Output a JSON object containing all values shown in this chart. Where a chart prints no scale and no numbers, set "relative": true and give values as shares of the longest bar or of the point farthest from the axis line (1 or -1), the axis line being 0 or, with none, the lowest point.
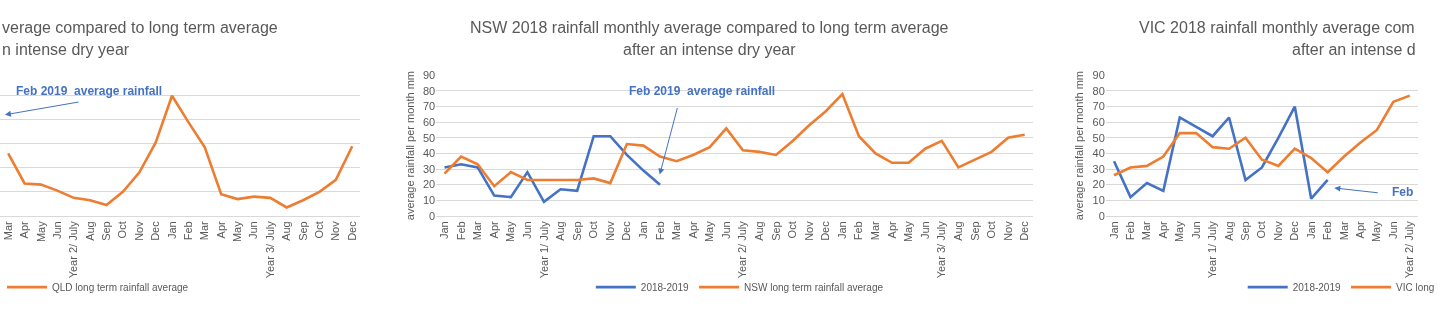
{
  "chart_data": [
    {
      "type": "line",
      "title": "verage compared to long term average n intense dry year",
      "relative": true,
      "categories": [
        "Mar",
        "Apr",
        "May",
        "Jun",
        "Year 2/ July",
        "Aug",
        "Sep",
        "Oct",
        "Nov",
        "Dec",
        "Jan",
        "Feb",
        "Mar",
        "Apr",
        "May",
        "Jun",
        "Year 3/ July",
        "Aug",
        "Sep",
        "Oct",
        "Nov",
        "Dec"
      ],
      "series": [
        {
          "name": "QLD long term rainfall average",
          "color": "#ed7d31",
          "values": [
            0.52,
            0.27,
            0.26,
            0.21,
            0.15,
            0.13,
            0.09,
            0.2,
            0.36,
            0.61,
            1,
            0.78,
            0.57,
            0.18,
            0.14,
            0.16,
            0.15,
            0.07,
            0.13,
            0.2,
            0.3,
            0.58
          ]
        }
      ],
      "annotations": [
        "Feb 2019  average rainfall"
      ],
      "grid": "y",
      "legend": "bottom",
      "marker": "none",
      "line_style": "solid",
      "tick_labels": "x"
    },
    {
      "type": "line",
      "title": "NSW 2018 rainfall monthly average compared to long term average after an intense dry year",
      "ylabel": "average rainfall per month mm",
      "categories": [
        "Jan",
        "Feb",
        "Mar",
        "Apr",
        "May",
        "Jun",
        "Year 1/ July",
        "Aug",
        "Sep",
        "Oct",
        "Nov",
        "Dec",
        "Jan",
        "Feb",
        "Mar",
        "Apr",
        "May",
        "Jun",
        "Year 2/ July",
        "Aug",
        "Sep",
        "Oct",
        "Nov",
        "Dec",
        "Jan",
        "Feb",
        "Mar",
        "Apr",
        "May",
        "Jun",
        "Year 3/ July",
        "Aug",
        "Sep",
        "Oct",
        "Nov",
        "Dec"
      ],
      "series": [
        {
          "name": "2018-2019",
          "color": "#4472c4",
          "values": [
            31,
            33,
            31,
            13,
            12,
            28,
            9,
            17,
            16,
            51,
            51,
            39,
            29,
            20,
            null,
            null,
            null,
            null,
            null,
            null,
            null,
            null,
            null,
            null,
            null,
            null,
            null,
            null,
            null,
            null,
            null,
            null,
            null,
            null,
            null,
            null
          ]
        },
        {
          "name": "NSW long term rainfall average",
          "color": "#ed7d31",
          "values": [
            27,
            38,
            33,
            19,
            28,
            23,
            23,
            23,
            23,
            24,
            21,
            46,
            45,
            38,
            35,
            39,
            44,
            56,
            42,
            41,
            39,
            48,
            58,
            67,
            78,
            51,
            40,
            34,
            34,
            43,
            48,
            31,
            36,
            41,
            50,
            52
          ]
        }
      ],
      "ylim": [
        0,
        90
      ],
      "yticks": [
        0,
        10,
        20,
        30,
        40,
        50,
        60,
        70,
        80,
        90
      ],
      "annotations": [
        "Feb 2019  average rainfall"
      ],
      "grid": "y",
      "legend": "bottom",
      "marker": "none",
      "line_style": "solid"
    },
    {
      "type": "line",
      "title": "VIC 2018 rainfall monthly average com after an intense d",
      "ylabel": "average rainfall per month mm",
      "categories": [
        "Jan",
        "Feb",
        "Mar",
        "Apr",
        "May",
        "Jun",
        "Year 1/ July",
        "Aug",
        "Sep",
        "Oct",
        "Nov",
        "Dec",
        "Jan",
        "Feb",
        "Mar",
        "Apr",
        "May",
        "Jun",
        "Year 2/ July"
      ],
      "series": [
        {
          "name": "2018-2019",
          "color": "#4472c4",
          "values": [
            35,
            12,
            21,
            16,
            63,
            57,
            51,
            63,
            23,
            31,
            50,
            70,
            11,
            23,
            null,
            null,
            null,
            null,
            null
          ]
        },
        {
          "name": "VIC long",
          "color": "#ed7d31",
          "values": [
            26,
            31,
            32,
            38,
            53,
            53,
            44,
            43,
            50,
            36,
            32,
            43,
            37,
            28,
            38,
            47,
            55,
            73,
            77
          ]
        }
      ],
      "ylim": [
        0,
        90
      ],
      "yticks": [
        0,
        10,
        20,
        30,
        40,
        50,
        60,
        70,
        80,
        90
      ],
      "annotations": [
        "Feb"
      ],
      "grid": "y",
      "legend": "bottom",
      "marker": "none",
      "line_style": "solid"
    }
  ]
}
